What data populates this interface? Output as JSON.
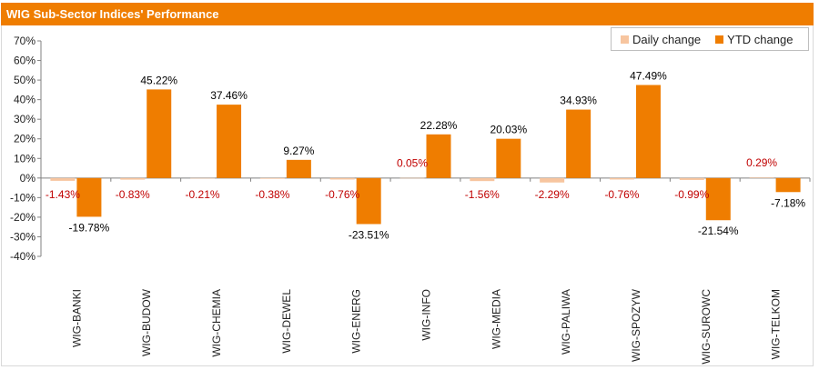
{
  "title": "WIG Sub-Sector Indices' Performance",
  "colors": {
    "accent": "#ef7d00",
    "daily": "#f7c59f",
    "ytd": "#ef7d00",
    "negative_label": "#c00000",
    "positive_label": "#c00000"
  },
  "chart_data": {
    "type": "bar",
    "title": "WIG Sub-Sector Indices' Performance",
    "categories": [
      "WIG-BANKI",
      "WIG-BUDOW",
      "WIG-CHEMIA",
      "WIG-DEWEL",
      "WIG-ENERG",
      "WIG-INFO",
      "WIG-MEDIA",
      "WIG-PALIWA",
      "WIG-SPOZYW",
      "WIG-SUROWC",
      "WIG-TELKOM"
    ],
    "series": [
      {
        "name": "Daily change",
        "values": [
          -1.43,
          -0.83,
          -0.21,
          -0.38,
          -0.76,
          0.05,
          -1.56,
          -2.29,
          -0.76,
          -0.99,
          0.29
        ],
        "labels": [
          "-1.43%",
          "-0.83%",
          "-0.21%",
          "-0.38%",
          "-0.76%",
          "0.05%",
          "-1.56%",
          "-2.29%",
          "-0.76%",
          "-0.99%",
          "0.29%"
        ]
      },
      {
        "name": "YTD change",
        "values": [
          -19.78,
          45.22,
          37.46,
          9.27,
          -23.51,
          22.28,
          20.03,
          34.93,
          47.49,
          -21.54,
          -7.18
        ],
        "labels": [
          "-19.78%",
          "45.22%",
          "37.46%",
          "9.27%",
          "-23.51%",
          "22.28%",
          "20.03%",
          "34.93%",
          "47.49%",
          "-21.54%",
          "-7.18%"
        ]
      }
    ],
    "ylim": [
      -40,
      70
    ],
    "yticks": [
      70,
      60,
      50,
      40,
      30,
      20,
      10,
      0,
      -10,
      -20,
      -30,
      -40
    ],
    "ytick_labels": [
      "70%",
      "60%",
      "50%",
      "40%",
      "30%",
      "20%",
      "10%",
      "0%",
      "-10%",
      "-20%",
      "-30%",
      "-40%"
    ],
    "legend_position": "top-right",
    "grid": false
  }
}
